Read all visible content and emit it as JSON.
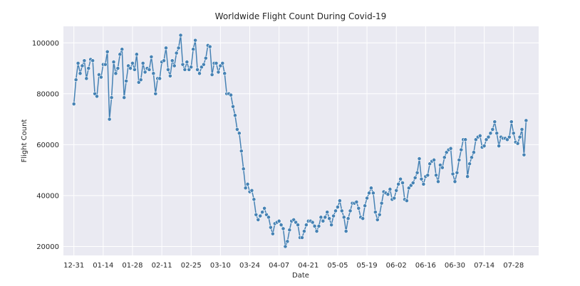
{
  "chart_data": {
    "type": "line",
    "title": "Worldwide Flight Count During Covid-19",
    "xlabel": "Date",
    "ylabel": "Flight Count",
    "xlim": [
      "2019-12-26",
      "2020-08-09"
    ],
    "ylim": [
      16500,
      106500
    ],
    "grid": true,
    "x_tick_labels": [
      "12-31",
      "01-14",
      "01-28",
      "02-11",
      "02-25",
      "03-10",
      "03-24",
      "04-07",
      "04-21",
      "05-05",
      "05-19",
      "06-02",
      "06-16",
      "06-30",
      "07-14",
      "07-28"
    ],
    "x_tick_dates": [
      "2019-12-31",
      "2020-01-14",
      "2020-01-28",
      "2020-02-11",
      "2020-02-25",
      "2020-03-10",
      "2020-03-24",
      "2020-04-07",
      "2020-04-21",
      "2020-05-05",
      "2020-05-19",
      "2020-06-02",
      "2020-06-16",
      "2020-06-30",
      "2020-07-14",
      "2020-07-28"
    ],
    "y_ticks": [
      20000,
      40000,
      60000,
      80000,
      100000
    ],
    "y_tick_labels": [
      "20000",
      "40000",
      "60000",
      "80000",
      "100000"
    ],
    "marker_color": "#4682b4",
    "line_color": "#4682b4",
    "background_color": "#eaeaf2",
    "x_start": "2019-12-31",
    "series": [
      {
        "values": [
          76000,
          85500,
          92000,
          88000,
          91000,
          93000,
          86000,
          90000,
          93500,
          93000,
          80000,
          79000,
          87500,
          86500,
          91500,
          91500,
          96500,
          70000,
          78500,
          92500,
          88000,
          90000,
          95500,
          97500,
          78500,
          85000,
          91000,
          90000,
          92000,
          89500,
          95500,
          84500,
          85500,
          92000,
          88500,
          90000,
          89500,
          94500,
          88000,
          80000,
          86000,
          86000,
          92500,
          93000,
          98000,
          89500,
          87000,
          93000,
          91000,
          96000,
          98000,
          103000,
          91500,
          89500,
          92500,
          89500,
          90500,
          97500,
          101000,
          89500,
          88000,
          90500,
          91500,
          94000,
          99000,
          98500,
          87500,
          92000,
          92000,
          88500,
          91000,
          92000,
          88000,
          80000,
          80000,
          79500,
          75000,
          71500,
          66000,
          64500,
          57500,
          50500,
          43000,
          44500,
          41500,
          42000,
          38500,
          32500,
          30500,
          32000,
          33500,
          35000,
          32500,
          31500,
          27500,
          25000,
          29000,
          29500,
          30000,
          28500,
          27000,
          20000,
          22000,
          26500,
          30000,
          30500,
          29500,
          28500,
          23500,
          23500,
          26000,
          28500,
          30000,
          30000,
          29500,
          28000,
          26000,
          28000,
          31500,
          30000,
          31500,
          33500,
          31000,
          28500,
          32000,
          34000,
          35500,
          38000,
          34000,
          31500,
          26000,
          31000,
          34000,
          37000,
          37000,
          37500,
          35000,
          31500,
          31000,
          36000,
          39000,
          41000,
          43000,
          41000,
          33500,
          30500,
          32500,
          37000,
          41500,
          41000,
          40500,
          42500,
          38500,
          39000,
          42000,
          44500,
          46500,
          45000,
          38500,
          38000,
          43000,
          44000,
          45000,
          47000,
          49000,
          54500,
          46500,
          44500,
          47500,
          48000,
          52500,
          53500,
          54000,
          48000,
          45500,
          52000,
          51000,
          55000,
          57000,
          58000,
          58500,
          48500,
          45500,
          49000,
          54000,
          58000,
          62000,
          62000,
          47500,
          52500,
          55000,
          57000,
          62000,
          63000,
          63500,
          59000,
          59500,
          62000,
          63000,
          64500,
          66000,
          69000,
          64500,
          59500,
          63000,
          62500,
          62500,
          62000,
          63000,
          69000,
          64500,
          61000,
          60500,
          63000,
          66000,
          56000,
          69500
        ]
      }
    ]
  }
}
